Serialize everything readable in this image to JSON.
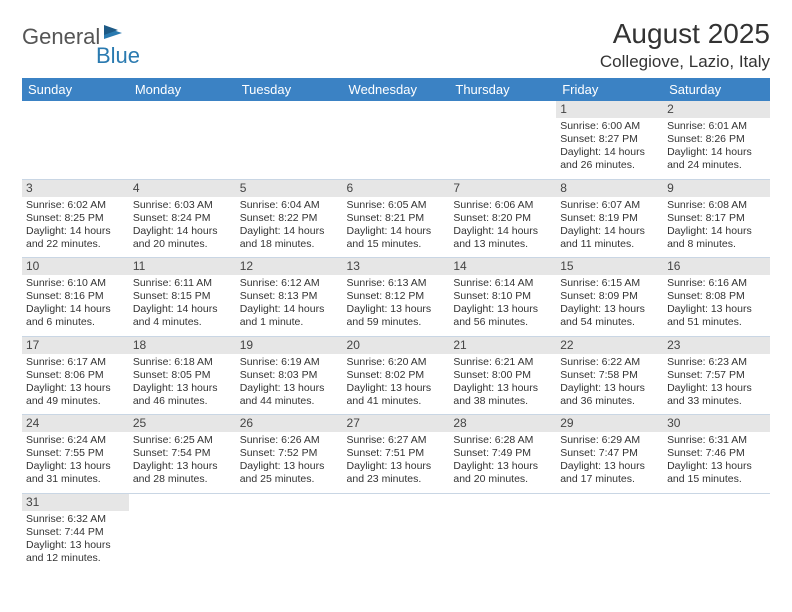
{
  "logo": {
    "word1": "General",
    "word2": "Blue",
    "flag_color": "#2a7ab0"
  },
  "title": "August 2025",
  "subtitle": "Collegiove, Lazio, Italy",
  "colors": {
    "header_bg": "#3b82c4",
    "header_fg": "#ffffff",
    "daynum_bg": "#e6e6e6",
    "row_divider": "#c9d6e4",
    "text": "#333333"
  },
  "dayNames": [
    "Sunday",
    "Monday",
    "Tuesday",
    "Wednesday",
    "Thursday",
    "Friday",
    "Saturday"
  ],
  "weeks": [
    [
      {
        "n": "",
        "lines": [
          "",
          "",
          "",
          ""
        ],
        "empty": true
      },
      {
        "n": "",
        "lines": [
          "",
          "",
          "",
          ""
        ],
        "empty": true
      },
      {
        "n": "",
        "lines": [
          "",
          "",
          "",
          ""
        ],
        "empty": true
      },
      {
        "n": "",
        "lines": [
          "",
          "",
          "",
          ""
        ],
        "empty": true
      },
      {
        "n": "",
        "lines": [
          "",
          "",
          "",
          ""
        ],
        "empty": true
      },
      {
        "n": "1",
        "lines": [
          "Sunrise: 6:00 AM",
          "Sunset: 8:27 PM",
          "Daylight: 14 hours",
          "and 26 minutes."
        ]
      },
      {
        "n": "2",
        "lines": [
          "Sunrise: 6:01 AM",
          "Sunset: 8:26 PM",
          "Daylight: 14 hours",
          "and 24 minutes."
        ]
      }
    ],
    [
      {
        "n": "3",
        "lines": [
          "Sunrise: 6:02 AM",
          "Sunset: 8:25 PM",
          "Daylight: 14 hours",
          "and 22 minutes."
        ]
      },
      {
        "n": "4",
        "lines": [
          "Sunrise: 6:03 AM",
          "Sunset: 8:24 PM",
          "Daylight: 14 hours",
          "and 20 minutes."
        ]
      },
      {
        "n": "5",
        "lines": [
          "Sunrise: 6:04 AM",
          "Sunset: 8:22 PM",
          "Daylight: 14 hours",
          "and 18 minutes."
        ]
      },
      {
        "n": "6",
        "lines": [
          "Sunrise: 6:05 AM",
          "Sunset: 8:21 PM",
          "Daylight: 14 hours",
          "and 15 minutes."
        ]
      },
      {
        "n": "7",
        "lines": [
          "Sunrise: 6:06 AM",
          "Sunset: 8:20 PM",
          "Daylight: 14 hours",
          "and 13 minutes."
        ]
      },
      {
        "n": "8",
        "lines": [
          "Sunrise: 6:07 AM",
          "Sunset: 8:19 PM",
          "Daylight: 14 hours",
          "and 11 minutes."
        ]
      },
      {
        "n": "9",
        "lines": [
          "Sunrise: 6:08 AM",
          "Sunset: 8:17 PM",
          "Daylight: 14 hours",
          "and 8 minutes."
        ]
      }
    ],
    [
      {
        "n": "10",
        "lines": [
          "Sunrise: 6:10 AM",
          "Sunset: 8:16 PM",
          "Daylight: 14 hours",
          "and 6 minutes."
        ]
      },
      {
        "n": "11",
        "lines": [
          "Sunrise: 6:11 AM",
          "Sunset: 8:15 PM",
          "Daylight: 14 hours",
          "and 4 minutes."
        ]
      },
      {
        "n": "12",
        "lines": [
          "Sunrise: 6:12 AM",
          "Sunset: 8:13 PM",
          "Daylight: 14 hours",
          "and 1 minute."
        ]
      },
      {
        "n": "13",
        "lines": [
          "Sunrise: 6:13 AM",
          "Sunset: 8:12 PM",
          "Daylight: 13 hours",
          "and 59 minutes."
        ]
      },
      {
        "n": "14",
        "lines": [
          "Sunrise: 6:14 AM",
          "Sunset: 8:10 PM",
          "Daylight: 13 hours",
          "and 56 minutes."
        ]
      },
      {
        "n": "15",
        "lines": [
          "Sunrise: 6:15 AM",
          "Sunset: 8:09 PM",
          "Daylight: 13 hours",
          "and 54 minutes."
        ]
      },
      {
        "n": "16",
        "lines": [
          "Sunrise: 6:16 AM",
          "Sunset: 8:08 PM",
          "Daylight: 13 hours",
          "and 51 minutes."
        ]
      }
    ],
    [
      {
        "n": "17",
        "lines": [
          "Sunrise: 6:17 AM",
          "Sunset: 8:06 PM",
          "Daylight: 13 hours",
          "and 49 minutes."
        ]
      },
      {
        "n": "18",
        "lines": [
          "Sunrise: 6:18 AM",
          "Sunset: 8:05 PM",
          "Daylight: 13 hours",
          "and 46 minutes."
        ]
      },
      {
        "n": "19",
        "lines": [
          "Sunrise: 6:19 AM",
          "Sunset: 8:03 PM",
          "Daylight: 13 hours",
          "and 44 minutes."
        ]
      },
      {
        "n": "20",
        "lines": [
          "Sunrise: 6:20 AM",
          "Sunset: 8:02 PM",
          "Daylight: 13 hours",
          "and 41 minutes."
        ]
      },
      {
        "n": "21",
        "lines": [
          "Sunrise: 6:21 AM",
          "Sunset: 8:00 PM",
          "Daylight: 13 hours",
          "and 38 minutes."
        ]
      },
      {
        "n": "22",
        "lines": [
          "Sunrise: 6:22 AM",
          "Sunset: 7:58 PM",
          "Daylight: 13 hours",
          "and 36 minutes."
        ]
      },
      {
        "n": "23",
        "lines": [
          "Sunrise: 6:23 AM",
          "Sunset: 7:57 PM",
          "Daylight: 13 hours",
          "and 33 minutes."
        ]
      }
    ],
    [
      {
        "n": "24",
        "lines": [
          "Sunrise: 6:24 AM",
          "Sunset: 7:55 PM",
          "Daylight: 13 hours",
          "and 31 minutes."
        ]
      },
      {
        "n": "25",
        "lines": [
          "Sunrise: 6:25 AM",
          "Sunset: 7:54 PM",
          "Daylight: 13 hours",
          "and 28 minutes."
        ]
      },
      {
        "n": "26",
        "lines": [
          "Sunrise: 6:26 AM",
          "Sunset: 7:52 PM",
          "Daylight: 13 hours",
          "and 25 minutes."
        ]
      },
      {
        "n": "27",
        "lines": [
          "Sunrise: 6:27 AM",
          "Sunset: 7:51 PM",
          "Daylight: 13 hours",
          "and 23 minutes."
        ]
      },
      {
        "n": "28",
        "lines": [
          "Sunrise: 6:28 AM",
          "Sunset: 7:49 PM",
          "Daylight: 13 hours",
          "and 20 minutes."
        ]
      },
      {
        "n": "29",
        "lines": [
          "Sunrise: 6:29 AM",
          "Sunset: 7:47 PM",
          "Daylight: 13 hours",
          "and 17 minutes."
        ]
      },
      {
        "n": "30",
        "lines": [
          "Sunrise: 6:31 AM",
          "Sunset: 7:46 PM",
          "Daylight: 13 hours",
          "and 15 minutes."
        ]
      }
    ],
    [
      {
        "n": "31",
        "lines": [
          "Sunrise: 6:32 AM",
          "Sunset: 7:44 PM",
          "Daylight: 13 hours",
          "and 12 minutes."
        ]
      },
      {
        "n": "",
        "lines": [
          "",
          "",
          "",
          ""
        ],
        "empty": true
      },
      {
        "n": "",
        "lines": [
          "",
          "",
          "",
          ""
        ],
        "empty": true
      },
      {
        "n": "",
        "lines": [
          "",
          "",
          "",
          ""
        ],
        "empty": true
      },
      {
        "n": "",
        "lines": [
          "",
          "",
          "",
          ""
        ],
        "empty": true
      },
      {
        "n": "",
        "lines": [
          "",
          "",
          "",
          ""
        ],
        "empty": true
      },
      {
        "n": "",
        "lines": [
          "",
          "",
          "",
          ""
        ],
        "empty": true
      }
    ]
  ]
}
